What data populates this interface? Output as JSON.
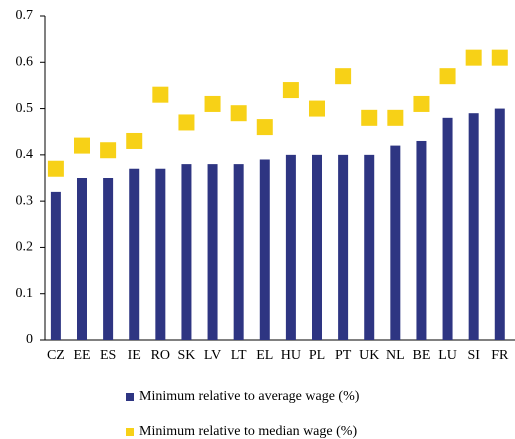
{
  "chart_data": {
    "type": "bar",
    "categories": [
      "CZ",
      "EE",
      "ES",
      "IE",
      "RO",
      "SK",
      "LV",
      "LT",
      "EL",
      "HU",
      "PL",
      "PT",
      "UK",
      "NL",
      "BE",
      "LU",
      "SI",
      "FR"
    ],
    "series": [
      {
        "name": "Minimum relative to average wage (%)",
        "color": "#2e3582",
        "marker": "bar",
        "values": [
          0.32,
          0.35,
          0.35,
          0.37,
          0.37,
          0.38,
          0.38,
          0.38,
          0.39,
          0.4,
          0.4,
          0.4,
          0.4,
          0.42,
          0.43,
          0.48,
          0.49,
          0.5
        ]
      },
      {
        "name": "Minimum relative to median wage (%)",
        "color": "#f7d117",
        "marker": "square",
        "values": [
          0.37,
          0.42,
          0.41,
          0.43,
          0.53,
          0.47,
          0.51,
          0.49,
          0.46,
          0.54,
          0.5,
          0.57,
          0.48,
          0.48,
          0.51,
          0.57,
          0.61,
          0.61
        ]
      }
    ],
    "ylim": [
      0,
      0.7
    ],
    "yticks": [
      0,
      0.1,
      0.2,
      0.3,
      0.4,
      0.5,
      0.6,
      0.7
    ],
    "grid": false,
    "legend": "bottom"
  }
}
